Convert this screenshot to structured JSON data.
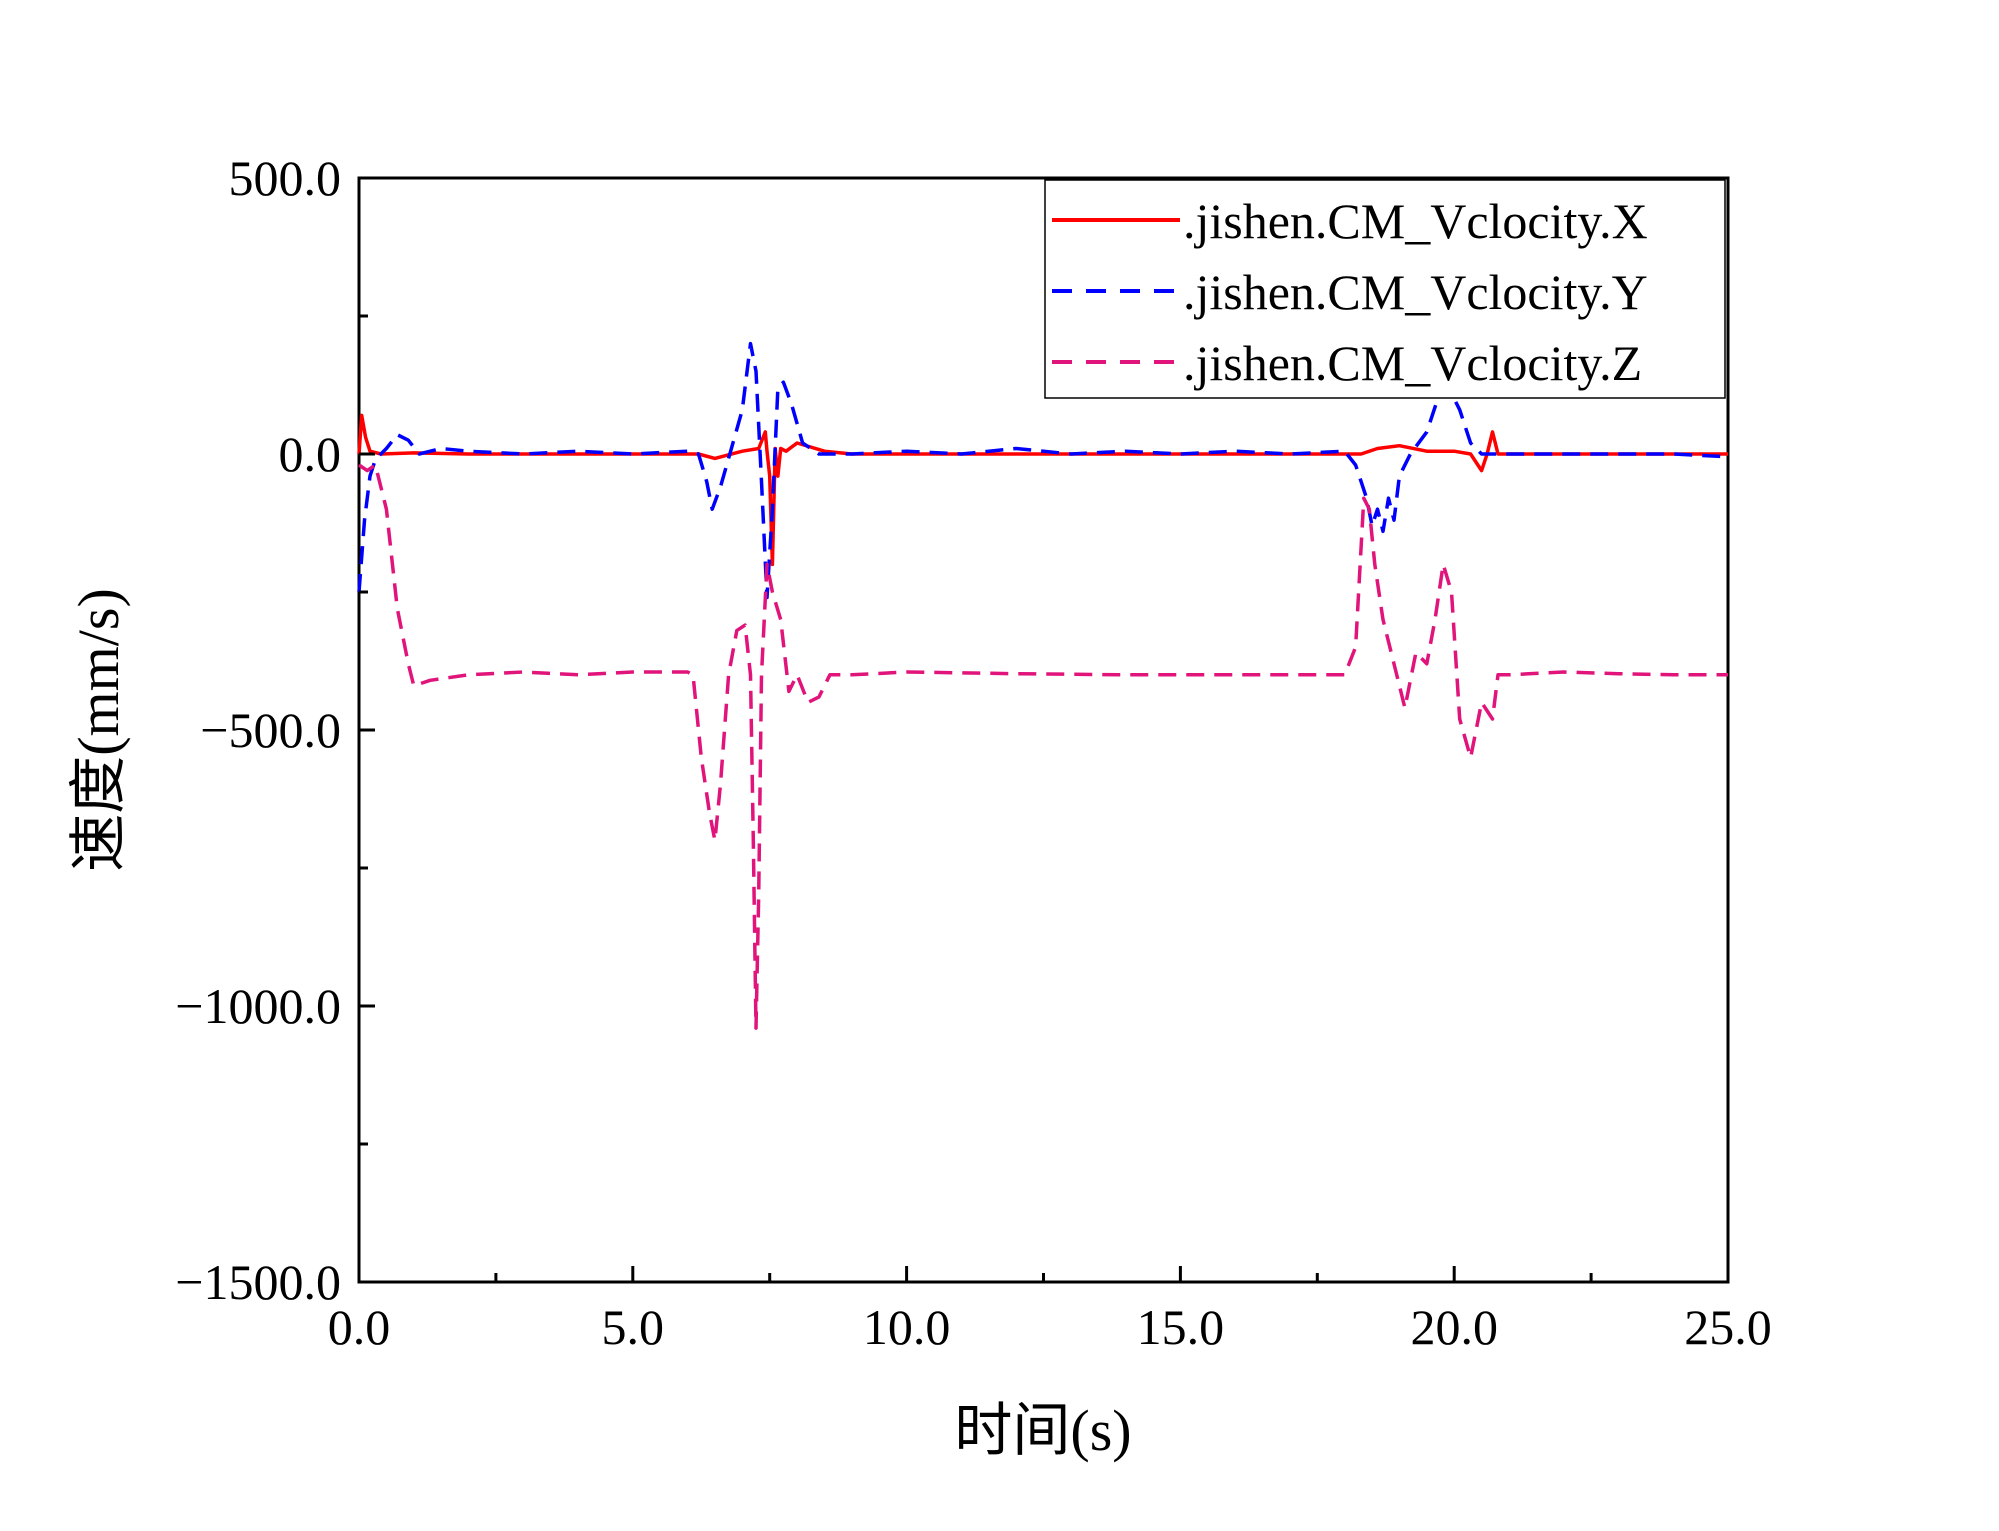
{
  "chart_data": {
    "type": "line",
    "title": "",
    "xlabel": "时间(s)",
    "ylabel": "速度(mm/s)",
    "xlim": [
      0,
      25
    ],
    "ylim": [
      -1500,
      500
    ],
    "x_ticks": [
      0,
      5,
      10,
      15,
      20,
      25
    ],
    "x_tick_labels": [
      "0.0",
      "5.0",
      "10.0",
      "15.0",
      "20.0",
      "25.0"
    ],
    "y_ticks": [
      500,
      0,
      -500,
      -1000,
      -1500
    ],
    "y_tick_labels": [
      "500.0",
      "0.0",
      "−500.0",
      "−1000.0",
      "−1500.0"
    ],
    "legend_position": "top-right",
    "grid": false,
    "series": [
      {
        "name": ".jishen.CM_Vclocity.X",
        "color": "#ff0000",
        "style": "solid",
        "x": [
          0,
          0.05,
          0.12,
          0.2,
          0.4,
          1,
          2,
          3,
          4,
          5,
          6,
          6.2,
          6.5,
          7.0,
          7.3,
          7.42,
          7.45,
          7.5,
          7.55,
          7.6,
          7.65,
          7.7,
          7.8,
          8.0,
          8.5,
          9,
          10,
          12,
          14,
          16,
          18,
          18.3,
          18.6,
          19,
          19.5,
          20,
          20.3,
          20.5,
          20.6,
          20.7,
          20.8,
          21,
          22,
          23,
          24,
          25
        ],
        "values": [
          0,
          70,
          30,
          5,
          0,
          2,
          0,
          0,
          0,
          0,
          0,
          0,
          -8,
          5,
          10,
          40,
          5,
          -40,
          -200,
          10,
          -40,
          10,
          5,
          20,
          5,
          0,
          0,
          0,
          0,
          0,
          0,
          0,
          10,
          15,
          5,
          5,
          0,
          -30,
          0,
          40,
          0,
          0,
          0,
          0,
          0,
          0
        ]
      },
      {
        "name": ".jishen.CM_Vclocity.Y",
        "color": "#0000ff",
        "style": "dashed",
        "x": [
          0,
          0.1,
          0.2,
          0.3,
          0.5,
          0.7,
          0.9,
          1.1,
          1.5,
          2,
          3,
          4,
          5,
          6,
          6.2,
          6.35,
          6.45,
          6.6,
          6.8,
          7.0,
          7.15,
          7.25,
          7.35,
          7.45,
          7.55,
          7.65,
          7.75,
          7.9,
          8.1,
          8.4,
          9,
          10,
          11,
          12,
          13,
          14,
          15,
          16,
          17,
          18,
          18.2,
          18.4,
          18.5,
          18.6,
          18.7,
          18.8,
          18.9,
          19.0,
          19.2,
          19.5,
          19.7,
          19.9,
          20.1,
          20.3,
          20.5,
          21,
          22,
          23,
          24,
          25
        ],
        "values": [
          -250,
          -120,
          -40,
          -10,
          10,
          35,
          25,
          0,
          10,
          5,
          0,
          5,
          0,
          5,
          0,
          -50,
          -100,
          -60,
          10,
          80,
          200,
          150,
          -50,
          -260,
          -100,
          120,
          130,
          90,
          20,
          0,
          0,
          5,
          0,
          10,
          0,
          5,
          0,
          5,
          0,
          5,
          -20,
          -80,
          -130,
          -100,
          -140,
          -80,
          -120,
          -40,
          0,
          40,
          100,
          120,
          80,
          20,
          0,
          0,
          0,
          0,
          0,
          -5
        ]
      },
      {
        "name": ".jishen.CM_Vclocity.Z",
        "color": "#e0147a",
        "style": "dashed",
        "x": [
          0,
          0.15,
          0.3,
          0.5,
          0.7,
          0.9,
          1.0,
          1.3,
          2,
          3,
          4,
          5,
          6,
          6.1,
          6.25,
          6.4,
          6.5,
          6.6,
          6.75,
          6.9,
          7.05,
          7.15,
          7.2,
          7.25,
          7.3,
          7.35,
          7.45,
          7.55,
          7.7,
          7.85,
          8.0,
          8.2,
          8.4,
          8.6,
          9,
          10,
          12,
          14,
          16,
          18,
          18.2,
          18.35,
          18.45,
          18.55,
          18.7,
          18.9,
          19.1,
          19.3,
          19.5,
          19.65,
          19.8,
          19.95,
          20.1,
          20.3,
          20.5,
          20.7,
          20.8,
          21,
          22,
          23,
          24,
          25
        ],
        "values": [
          -20,
          -30,
          -20,
          -100,
          -280,
          -380,
          -420,
          -410,
          -400,
          -395,
          -400,
          -395,
          -395,
          -400,
          -550,
          -650,
          -700,
          -600,
          -400,
          -320,
          -310,
          -400,
          -700,
          -1040,
          -800,
          -400,
          -200,
          -250,
          -300,
          -430,
          -400,
          -450,
          -440,
          -400,
          -400,
          -395,
          -398,
          -400,
          -400,
          -400,
          -350,
          -80,
          -100,
          -200,
          -300,
          -380,
          -460,
          -360,
          -380,
          -300,
          -200,
          -250,
          -480,
          -550,
          -450,
          -480,
          -400,
          -400,
          -395,
          -398,
          -400,
          -400
        ]
      }
    ]
  }
}
